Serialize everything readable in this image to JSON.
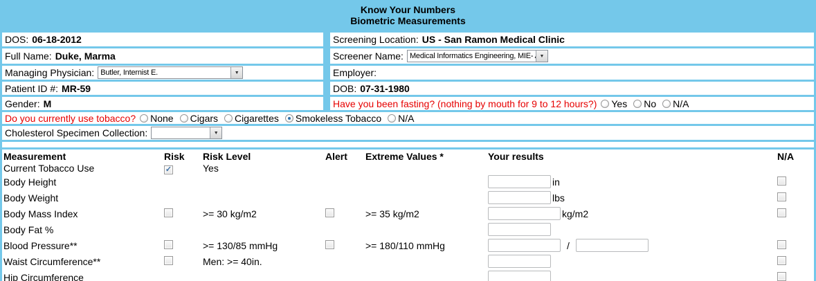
{
  "colors": {
    "page_blue": "#74c8ea",
    "red": "#e60000",
    "check": "#3b6ea5"
  },
  "icons": {
    "dropdown_arrow": "▼",
    "checkmark": "✓"
  },
  "header": {
    "title_line1": "Know Your Numbers",
    "title_line2": "Biometric Measurements"
  },
  "info": {
    "dos": {
      "label": "DOS:",
      "value": "06-18-2012"
    },
    "screening_location": {
      "label": "Screening Location:",
      "value": "US - San Ramon Medical Clinic"
    },
    "full_name": {
      "label": "Full Name:",
      "value": "Duke, Marma"
    },
    "screener_name": {
      "label": "Screener Name:",
      "select_value": "Medical Informatics Engineering, MIE- Alice"
    },
    "managing_physician": {
      "label": "Managing Physician:",
      "select_value": "Butler, Internist E."
    },
    "employer": {
      "label": "Employer:"
    },
    "patient_id": {
      "label": "Patient ID #:",
      "value": "MR-59"
    },
    "dob": {
      "label": "DOB:",
      "value": "07-31-1980"
    },
    "gender": {
      "label": "Gender:",
      "value": "M"
    },
    "fasting": {
      "question": "Have you been fasting? (nothing by mouth for 9 to 12 hours?)",
      "options": [
        "Yes",
        "No",
        "N/A"
      ],
      "selected": null
    },
    "tobacco": {
      "question": "Do you currently use tobacco?",
      "options": [
        "None",
        "Cigars",
        "Cigarettes",
        "Smokeless Tobacco",
        "N/A"
      ],
      "selected": "Smokeless Tobacco"
    },
    "cholesterol": {
      "label": "Cholesterol Specimen Collection:",
      "select_value": ""
    }
  },
  "measurements": {
    "headers": {
      "measurement": "Measurement",
      "risk": "Risk",
      "risk_level": "Risk Level",
      "alert": "Alert",
      "extreme": "Extreme Values *",
      "results": "Your results",
      "na": "N/A"
    },
    "rows": [
      {
        "name": "Current Tobacco Use",
        "risk_checkbox": true,
        "risk_checked": true,
        "risk_level": "Yes",
        "tobacco_row": true
      },
      {
        "name": "Body Height",
        "input": true,
        "unit": "in",
        "na": true
      },
      {
        "name": "Body Weight",
        "input": true,
        "unit": "lbs",
        "na": true
      },
      {
        "name": "Body Mass Index",
        "risk_checkbox": true,
        "risk_checked": false,
        "risk_level": ">= 30 kg/m2",
        "alert_checkbox": true,
        "alert_checked": false,
        "extreme": ">= 35 kg/m2",
        "input": true,
        "wide": true,
        "unit": "kg/m2",
        "na": true
      },
      {
        "name": "Body Fat %",
        "input": true
      },
      {
        "name": "Blood Pressure**",
        "risk_checkbox": true,
        "risk_checked": false,
        "risk_level": ">= 130/85 mmHg",
        "alert_checkbox": true,
        "alert_checked": false,
        "extreme": ">= 180/110 mmHg",
        "input": true,
        "wide": true,
        "input2": true,
        "separator": "/",
        "na": true
      },
      {
        "name": "Waist Circumference**",
        "risk_checkbox": true,
        "risk_checked": false,
        "risk_level": "Men: >= 40in.",
        "input": true,
        "na": true
      },
      {
        "name": "Hip Circumference",
        "input": true,
        "na": true
      }
    ]
  }
}
